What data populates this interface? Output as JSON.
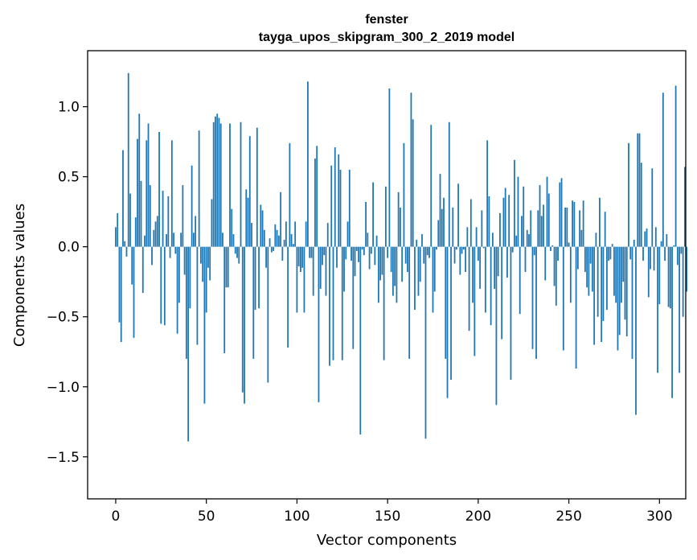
{
  "chart_data": {
    "type": "bar",
    "title": "fenster",
    "subtitle": "tayga_upos_skipgram_300_2_2019 model",
    "xlabel": "Vector components",
    "ylabel": "Components values",
    "xlim": [
      -15.5,
      314.5
    ],
    "ylim": [
      -1.8,
      1.4
    ],
    "xticks": [
      0,
      50,
      100,
      150,
      200,
      250,
      300
    ],
    "xtick_labels": [
      "0",
      "50",
      "100",
      "150",
      "200",
      "250",
      "300"
    ],
    "yticks": [
      -1.5,
      -1.0,
      -0.5,
      0.0,
      0.5,
      1.0
    ],
    "ytick_labels": [
      "−1.5",
      "−1.0",
      "−0.5",
      "0.0",
      "0.5",
      "1.0"
    ],
    "color": "#1f77b4",
    "values": [
      0.14,
      0.24,
      -0.54,
      -0.68,
      0.69,
      0.04,
      -0.07,
      1.24,
      0.38,
      -0.27,
      -0.65,
      0.21,
      0.77,
      0.95,
      0.47,
      -0.33,
      0.08,
      0.76,
      0.88,
      0.44,
      -0.13,
      0.12,
      0.18,
      0.22,
      0.82,
      -0.55,
      0.4,
      -0.56,
      0.09,
      0.36,
      -0.08,
      0.76,
      0.1,
      -0.05,
      -0.62,
      -0.4,
      0.1,
      0.44,
      -0.2,
      -0.8,
      -1.39,
      -0.44,
      0.58,
      0.1,
      0.22,
      -0.7,
      0.83,
      -0.12,
      -0.25,
      -1.12,
      -0.47,
      -0.15,
      -0.24,
      0.34,
      0.89,
      0.93,
      0.95,
      0.92,
      0.88,
      0.1,
      -0.76,
      -0.29,
      -0.29,
      0.88,
      0.27,
      0.09,
      -0.05,
      -0.08,
      -0.12,
      0.89,
      -1.04,
      -1.12,
      0.41,
      0.35,
      0.79,
      0.17,
      -0.8,
      -0.45,
      0.85,
      -0.44,
      0.3,
      0.26,
      0.12,
      -0.15,
      -0.97,
      0.06,
      -0.04,
      -0.03,
      0.16,
      0.12,
      0.08,
      0.39,
      -0.1,
      0.05,
      0.18,
      -0.72,
      0.74,
      0.09,
      0.02,
      0.18,
      -0.47,
      -0.14,
      -0.18,
      -0.15,
      -0.47,
      0.18,
      1.18,
      -0.08,
      -0.08,
      -0.35,
      0.63,
      0.72,
      -1.11,
      -0.3,
      -0.13,
      -0.06,
      -0.35,
      0.17,
      -0.85,
      0.58,
      -0.81,
      0.71,
      -0.15,
      0.66,
      0.55,
      -0.81,
      -0.32,
      -0.09,
      0.18,
      0.55,
      -0.1,
      -0.73,
      -0.21,
      -0.03,
      -0.11,
      -1.34,
      -0.02,
      -0.06,
      0.32,
      0.1,
      -0.16,
      -0.05,
      0.46,
      -0.13,
      0.08,
      -0.4,
      -0.24,
      -0.2,
      -0.81,
      0.43,
      -0.08,
      1.13,
      -0.18,
      -0.35,
      -0.28,
      -0.4,
      0.39,
      0.28,
      -0.25,
      0.74,
      -0.12,
      -0.18,
      -0.8,
      1.1,
      0.91,
      -0.45,
      0.05,
      -0.35,
      -0.25,
      0.09,
      -0.12,
      -1.37,
      -0.06,
      -0.08,
      0.87,
      -0.47,
      -0.32,
      -0.02,
      0.19,
      0.52,
      0.27,
      0.35,
      -0.8,
      -1.08,
      0.89,
      -0.95,
      0.28,
      -0.12,
      -0.02,
      0.45,
      -0.2,
      -0.05,
      -0.02,
      -0.18,
      0.14,
      -0.6,
      0.34,
      -0.4,
      -0.78,
      0.14,
      -0.1,
      -0.3,
      0.26,
      -0.01,
      -0.47,
      0.76,
      0.36,
      -0.56,
      0.1,
      -0.3,
      -1.13,
      -0.21,
      0.24,
      -0.66,
      0.35,
      0.42,
      -0.22,
      0.37,
      -0.95,
      -0.04,
      0.62,
      0.08,
      0.5,
      -0.48,
      0.22,
      0.43,
      -0.18,
      0.12,
      0.09,
      0.26,
      -0.73,
      -0.06,
      -0.8,
      0.26,
      0.44,
      0.22,
      0.3,
      -0.24,
      0.5,
      0.38,
      -0.03,
      0.01,
      -0.28,
      -0.42,
      -0.1,
      0.46,
      0.49,
      -0.74,
      0.28,
      0.28,
      0.03,
      -0.4,
      0.33,
      0.32,
      -0.87,
      -0.16,
      0.26,
      0.12,
      0.33,
      -0.18,
      -0.29,
      -0.35,
      -0.12,
      -0.32,
      -0.7,
      0.1,
      -0.5,
      0.35,
      -0.68,
      -0.53,
      0.25,
      -0.45,
      -0.1,
      -0.09,
      0.02,
      -0.35,
      -0.4,
      -0.74,
      -0.63,
      -0.4,
      -0.25,
      -0.52,
      -0.64,
      0.74,
      -0.09,
      -0.8,
      0.05,
      -1.2,
      0.81,
      0.81,
      0.6,
      -0.1,
      0.11,
      0.13,
      -0.36,
      -0.16,
      0.56,
      -0.17,
      0.14,
      -0.9,
      -0.41,
      0.04,
      1.1,
      -0.1,
      0.09,
      -0.43,
      -0.44,
      -1.08,
      0.01,
      1.15,
      -0.13,
      -0.9,
      -0.05,
      -0.5,
      0.57,
      -0.32
    ]
  }
}
